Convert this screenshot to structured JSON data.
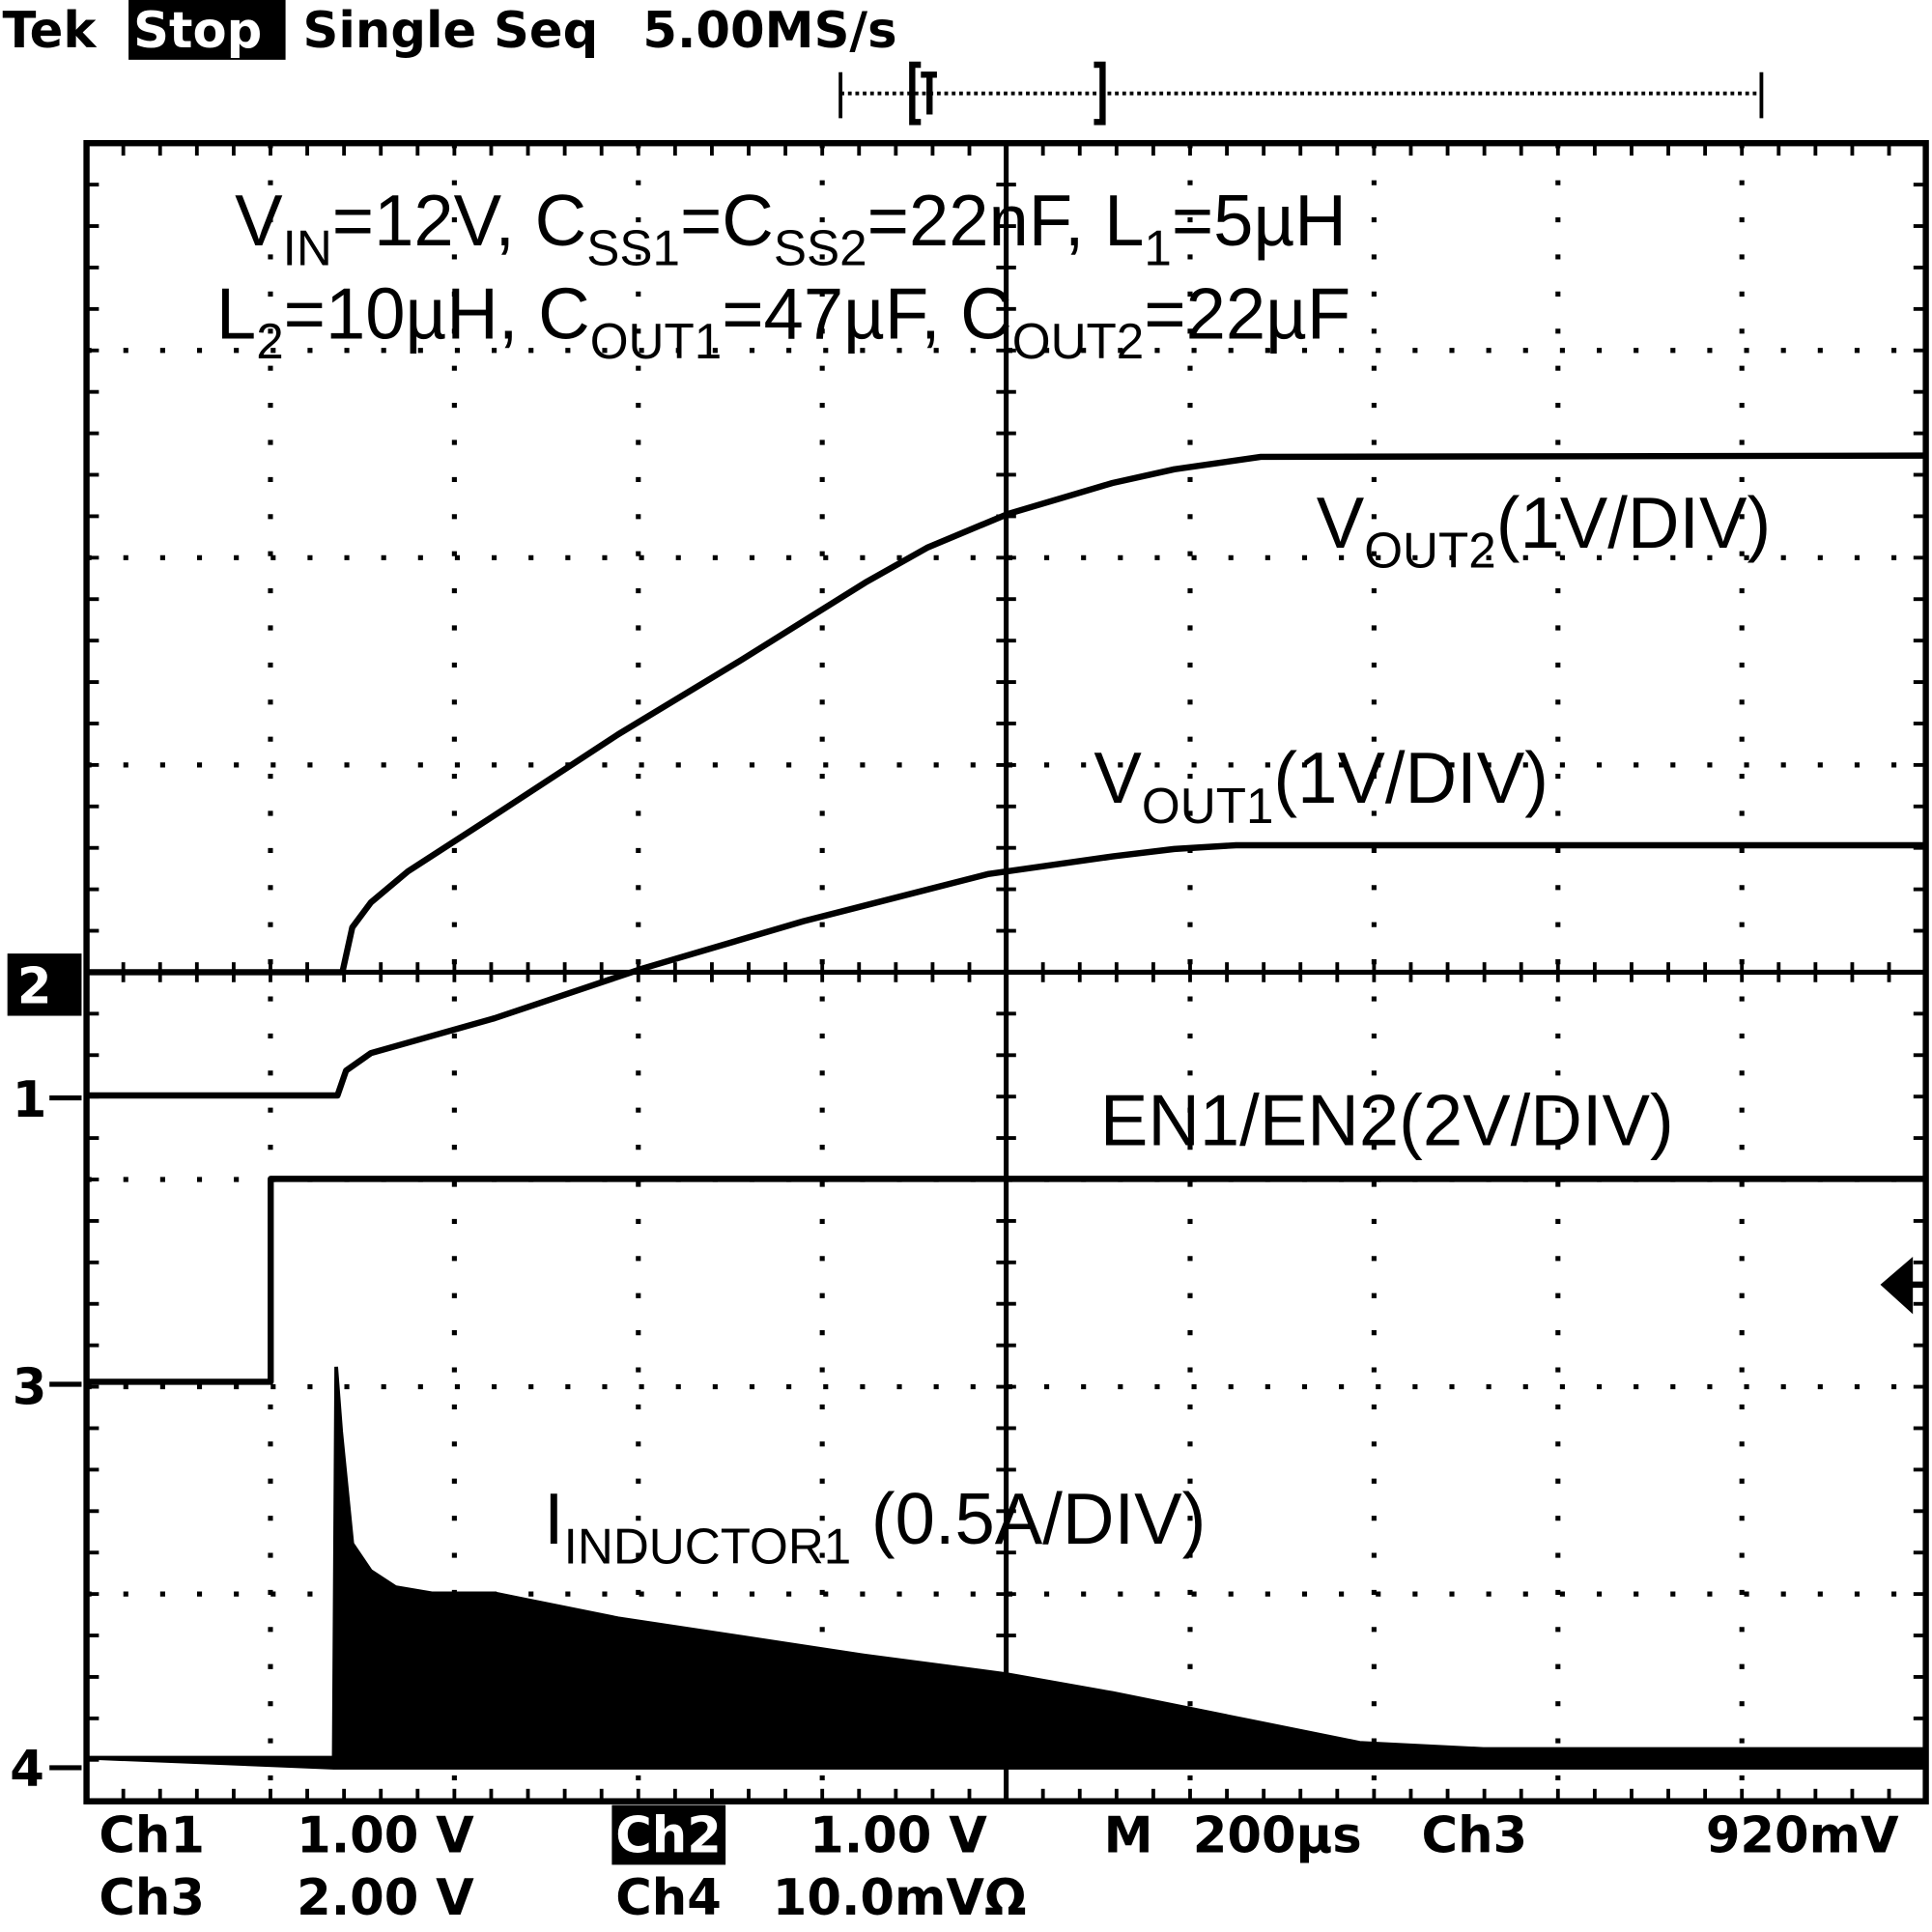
{
  "header": {
    "brand": "Tek",
    "state": "Stop",
    "mode": "Single Seq",
    "rate": "5.00MS/s"
  },
  "annotations": {
    "line1": [
      "V",
      "IN",
      "=12V, C",
      "SS1",
      "=C",
      "SS2",
      "=22nF, L",
      "1",
      "=5µH"
    ],
    "line2": [
      "L",
      "2",
      "=10µH, C",
      "OUT1",
      "=47µF, C",
      "OUT2",
      "=22µF"
    ],
    "vout2": [
      "V",
      "OUT2",
      "(1V/DIV)"
    ],
    "vout1": [
      "V",
      "OUT1",
      "(1V/DIV)"
    ],
    "en": [
      "EN1/EN2(2V/DIV)"
    ],
    "inductor": [
      "I",
      "INDUCTOR1",
      " (0.5A/DIV)"
    ]
  },
  "channel_markers": [
    "2",
    "1",
    "3",
    "4"
  ],
  "footer": {
    "row1": [
      "Ch1",
      "1.00 V",
      "Ch2",
      "1.00 V",
      "M",
      "200µs",
      "Ch3",
      "920mV"
    ],
    "row2": [
      "Ch3",
      "2.00 V",
      "Ch4",
      "10.0mVΩ"
    ]
  }
}
